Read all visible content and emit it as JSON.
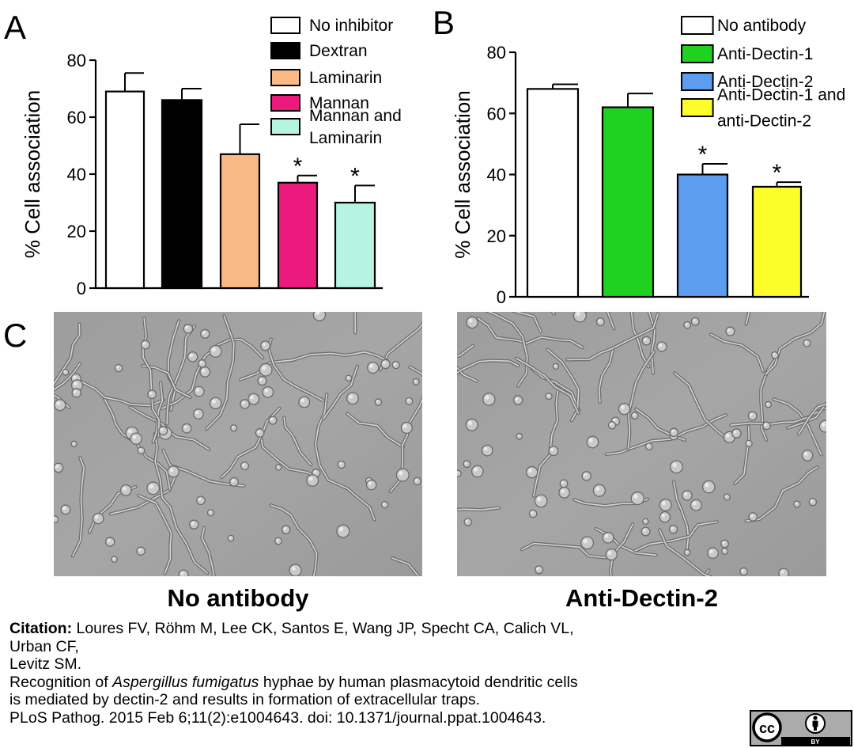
{
  "figure": {
    "panel_labels": [
      "A",
      "B",
      "C"
    ],
    "caption_left": "No antibody",
    "caption_right": "Anti-Dectin-2"
  },
  "citation": {
    "label": "Citation:",
    "authors_line1": " Loures FV, Röhm M, Lee CK, Santos E, Wang JP, Specht CA, Calich VL,",
    "authors_line2": "Urban CF,",
    "authors_line3": "Levitz SM.",
    "title_part1": "Recognition of ",
    "title_italic": "Aspergillus fumigatus",
    "title_part2": " hyphae by human plasmacytoid dendritic cells",
    "title_line2": "is mediated by dectin-2 and results in formation of extracellular traps.",
    "journal_line": "PLoS Pathog. 2015 Feb 6;11(2):e1004643. doi: 10.1371/journal.ppat.1004643."
  },
  "license": {
    "cc": "cc",
    "by": "BY"
  },
  "colors": {
    "white": "#ffffff",
    "black": "#000000",
    "laminarin": "#f9b987",
    "mannan": "#ec1a7c",
    "mannan_laminarin": "#b4f4e1",
    "anti_dectin_1": "#20d220",
    "anti_dectin_2": "#5d9df0",
    "both": "#fdfd2a"
  },
  "chart_data": [
    {
      "type": "bar",
      "panel": "A",
      "ylabel": "% Cell association",
      "ylim": [
        0,
        80
      ],
      "yticks": [
        0,
        20,
        40,
        60,
        80
      ],
      "legend_placement": "top-right",
      "series": [
        {
          "name": "No inhibitor",
          "value": 69,
          "error": 6.5,
          "color": "#ffffff",
          "significant": false
        },
        {
          "name": "Dextran",
          "value": 66,
          "error": 4,
          "color": "#000000",
          "significant": false
        },
        {
          "name": "Laminarin",
          "value": 47,
          "error": 10.5,
          "color": "#f9b987",
          "significant": false
        },
        {
          "name": "Mannan",
          "value": 37,
          "error": 2.5,
          "color": "#ec1a7c",
          "significant": true
        },
        {
          "name": "Mannan and Laminarin",
          "legend_lines": [
            "Mannan and",
            "Laminarin"
          ],
          "value": 30,
          "error": 6,
          "color": "#b4f4e1",
          "significant": true
        }
      ],
      "annotation": "*"
    },
    {
      "type": "bar",
      "panel": "B",
      "ylabel": "% Cell association",
      "ylim": [
        0,
        80
      ],
      "yticks": [
        0,
        20,
        40,
        60,
        80
      ],
      "legend_placement": "top-right",
      "series": [
        {
          "name": "No antibody",
          "value": 68,
          "error": 1.5,
          "color": "#ffffff",
          "significant": false
        },
        {
          "name": "Anti-Dectin-1",
          "value": 62,
          "error": 4.5,
          "color": "#20d220",
          "significant": false
        },
        {
          "name": "Anti-Dectin-2",
          "value": 40,
          "error": 3.5,
          "color": "#5d9df0",
          "significant": true
        },
        {
          "name": "Anti-Dectin-1 and anti-Dectin-2",
          "legend_lines": [
            "Anti-Dectin-1 and",
            "anti-Dectin-2"
          ],
          "value": 36,
          "error": 1.5,
          "color": "#fdfd2a",
          "significant": true
        }
      ],
      "annotation": "*"
    }
  ]
}
